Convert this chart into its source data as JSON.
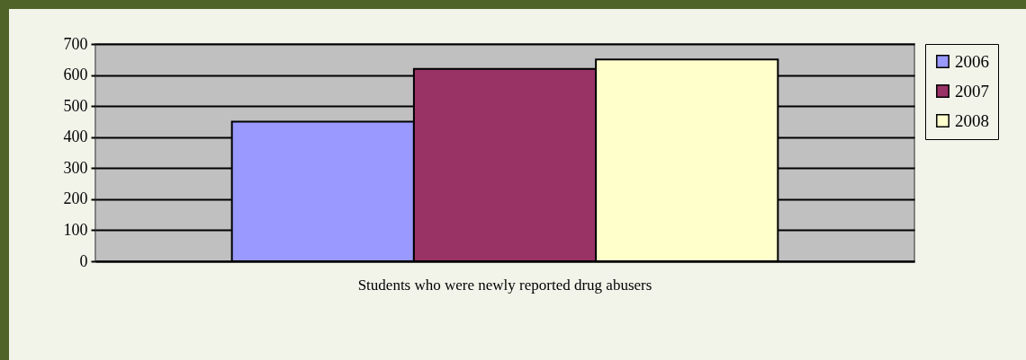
{
  "chart_data": {
    "type": "bar",
    "categories": [
      "Students who were newly reported drug abusers"
    ],
    "series": [
      {
        "name": "2006",
        "color": "#9999ff",
        "values": [
          450
        ]
      },
      {
        "name": "2007",
        "color": "#993366",
        "values": [
          620
        ]
      },
      {
        "name": "2008",
        "color": "#ffffcc",
        "values": [
          650
        ]
      }
    ],
    "ylim": [
      0,
      700
    ],
    "yticks": [
      0,
      100,
      200,
      300,
      400,
      500,
      600,
      700
    ],
    "grid": true,
    "legend": "right"
  }
}
